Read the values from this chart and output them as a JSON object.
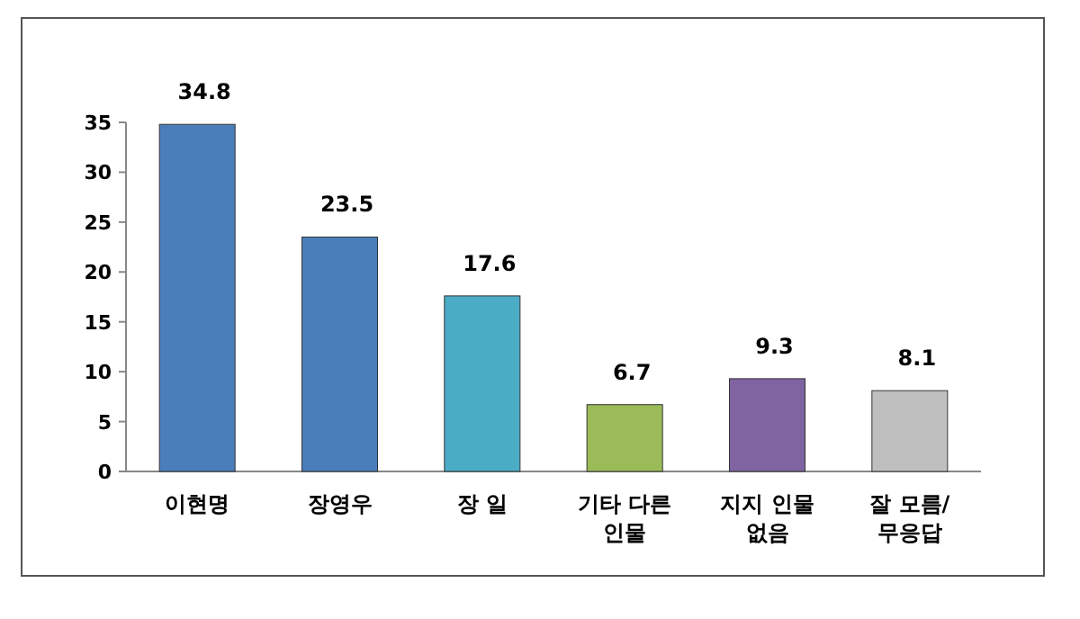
{
  "chart_data": {
    "type": "bar",
    "categories": [
      "이현명",
      "장영우",
      "장 일",
      "기타 다른\n인물",
      "지지 인물\n없음",
      "잘 모름/\n무응답"
    ],
    "values": [
      34.8,
      23.5,
      17.6,
      6.7,
      9.3,
      8.1
    ],
    "colors": [
      "#4a7ebb",
      "#4a7ebb",
      "#4bacc6",
      "#9bbb59",
      "#8064a2",
      "#bfbfbf"
    ],
    "ylim": [
      0,
      35
    ],
    "yticks": [
      0,
      5,
      10,
      15,
      20,
      25,
      30,
      35
    ],
    "data_labels": true
  }
}
